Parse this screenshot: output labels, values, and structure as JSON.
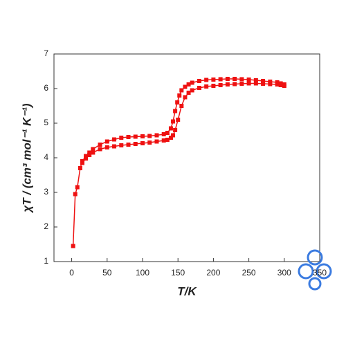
{
  "chart_data": {
    "type": "line",
    "x_label": "T/K",
    "y_label": "χT / (cm³ mol⁻¹ K⁻¹)",
    "xlim": [
      -25,
      350
    ],
    "xticks": [
      0,
      50,
      100,
      150,
      200,
      250,
      300,
      350
    ],
    "ylim": [
      1,
      7
    ],
    "yticks": [
      1,
      2,
      3,
      4,
      5,
      6,
      7
    ],
    "series": [
      {
        "color": "#ee1111",
        "x": [
          2,
          5,
          8,
          12,
          15,
          20,
          25,
          30,
          40,
          50,
          60,
          70,
          80,
          90,
          100,
          110,
          120,
          130,
          135,
          140,
          143,
          146,
          149,
          152,
          155,
          160,
          165,
          170,
          180,
          190,
          200,
          210,
          220,
          230,
          240,
          250,
          260,
          270,
          280,
          290,
          295,
          300
        ],
        "values": [
          1.45,
          2.95,
          3.15,
          3.7,
          3.9,
          4.05,
          4.15,
          4.25,
          4.38,
          4.47,
          4.53,
          4.58,
          4.6,
          4.61,
          4.62,
          4.63,
          4.65,
          4.68,
          4.72,
          4.85,
          5.05,
          5.35,
          5.6,
          5.8,
          5.95,
          6.05,
          6.12,
          6.17,
          6.22,
          6.25,
          6.26,
          6.27,
          6.28,
          6.28,
          6.27,
          6.26,
          6.24,
          6.22,
          6.2,
          6.18,
          6.15,
          6.12
        ]
      },
      {
        "color": "#ee1111",
        "x": [
          15,
          20,
          25,
          30,
          40,
          50,
          60,
          70,
          80,
          90,
          100,
          110,
          120,
          130,
          135,
          140,
          143,
          146,
          150,
          155,
          160,
          165,
          170,
          180,
          190,
          200,
          210,
          220,
          230,
          240,
          250,
          260,
          270,
          280,
          290,
          295,
          300
        ],
        "values": [
          3.85,
          3.98,
          4.08,
          4.15,
          4.25,
          4.3,
          4.33,
          4.36,
          4.38,
          4.4,
          4.42,
          4.44,
          4.47,
          4.5,
          4.52,
          4.58,
          4.65,
          4.8,
          5.1,
          5.5,
          5.75,
          5.88,
          5.95,
          6.02,
          6.06,
          6.08,
          6.1,
          6.12,
          6.13,
          6.14,
          6.15,
          6.15,
          6.14,
          6.13,
          6.12,
          6.1,
          6.08
        ]
      }
    ]
  }
}
